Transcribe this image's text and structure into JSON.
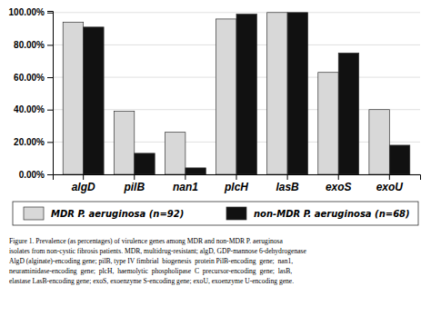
{
  "chart_data": {
    "type": "bar",
    "categories": [
      "algD",
      "pilB",
      "nan1",
      "plcH",
      "lasB",
      "exoS",
      "exoU"
    ],
    "series": [
      {
        "name": "MDR P. aeruginosa (n=92)",
        "color": "#d8d8d8",
        "values": [
          94.0,
          39.0,
          26.0,
          96.0,
          100.0,
          63.0,
          40.0
        ]
      },
      {
        "name": "non-MDR P. aeruginosa (n=68)",
        "color": "#111111",
        "values": [
          91.0,
          13.0,
          4.0,
          99.0,
          100.0,
          75.0,
          18.0
        ]
      }
    ],
    "ylim": [
      0,
      101
    ],
    "yticks": [
      {
        "value": 0,
        "label": "0.00%"
      },
      {
        "value": 20,
        "label": "20.00%"
      },
      {
        "value": 40,
        "label": "40.00%"
      },
      {
        "value": 60,
        "label": "60.00%"
      },
      {
        "value": 80,
        "label": "80.00%"
      },
      {
        "value": 100,
        "label": "100.00%"
      }
    ],
    "grid": true,
    "legend": "bottom",
    "caption": [
      "Figure 1. Prevalence (as percentages) of virulence genes among MDR and non-MDR P. aeruginosa",
      "isolates from non-cystic fibrosis patients. MDR, multidrug-resistant; algD, GDP-mannose 6-dehydrogenase",
      "AlgD (alginate)-encoding gene; pilB, type IV fimbrial  biogenesis  protein PilB-encoding  gene;  nan1,",
      "neuraminidase-encoding  gene;  plcH,  haemolytic  phospholipase  C  precursor-encoding  gene;  lasB,",
      "elastase LasB-encoding gene; exoS, exoenzyme S-encoding gene; exoU, exoenzyme U-encoding gene."
    ]
  }
}
